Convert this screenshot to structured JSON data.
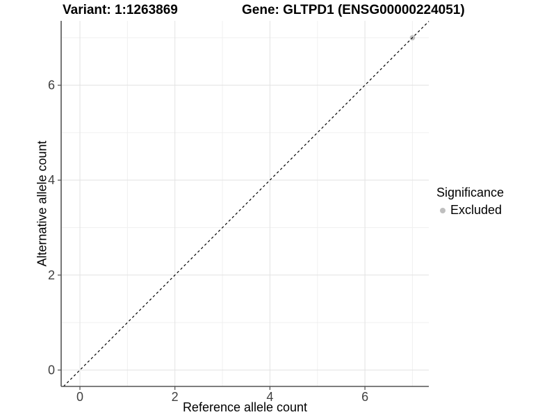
{
  "chart_data": {
    "type": "scatter",
    "title_variant": "Variant: 1:1263869",
    "title_gene": "Gene: GLTPD1 (ENSG00000224051)",
    "xlabel": "Reference allele count",
    "ylabel": "Alternative allele count",
    "xlim": [
      -0.395,
      7.345
    ],
    "ylim": [
      -0.345,
      7.355
    ],
    "x_major_ticks": [
      0,
      2,
      4,
      6
    ],
    "x_minor_ticks": [
      1,
      3,
      5,
      7
    ],
    "y_major_ticks": [
      0,
      2,
      4,
      6
    ],
    "y_minor_ticks": [
      1,
      3,
      5,
      7
    ],
    "grid": "major+minor",
    "identity_line": {
      "slope": 1,
      "intercept": 0,
      "style": "dashed",
      "color": "#000000"
    },
    "series": [
      {
        "name": "Excluded",
        "color": "#bfbfbf",
        "points": [
          [
            7,
            7
          ]
        ]
      }
    ],
    "legend": {
      "position": "right",
      "title": "Significance",
      "entries": [
        {
          "label": "Excluded",
          "color": "#bfbfbf",
          "marker": "circle"
        }
      ]
    },
    "colors": {
      "background": "#ffffff",
      "grid_major": "#e2e2e2",
      "grid_minor": "#f0f0f0",
      "axis_line": "#545454",
      "tick_mark": "#4d4d4d",
      "tick_text": "#404040"
    }
  }
}
